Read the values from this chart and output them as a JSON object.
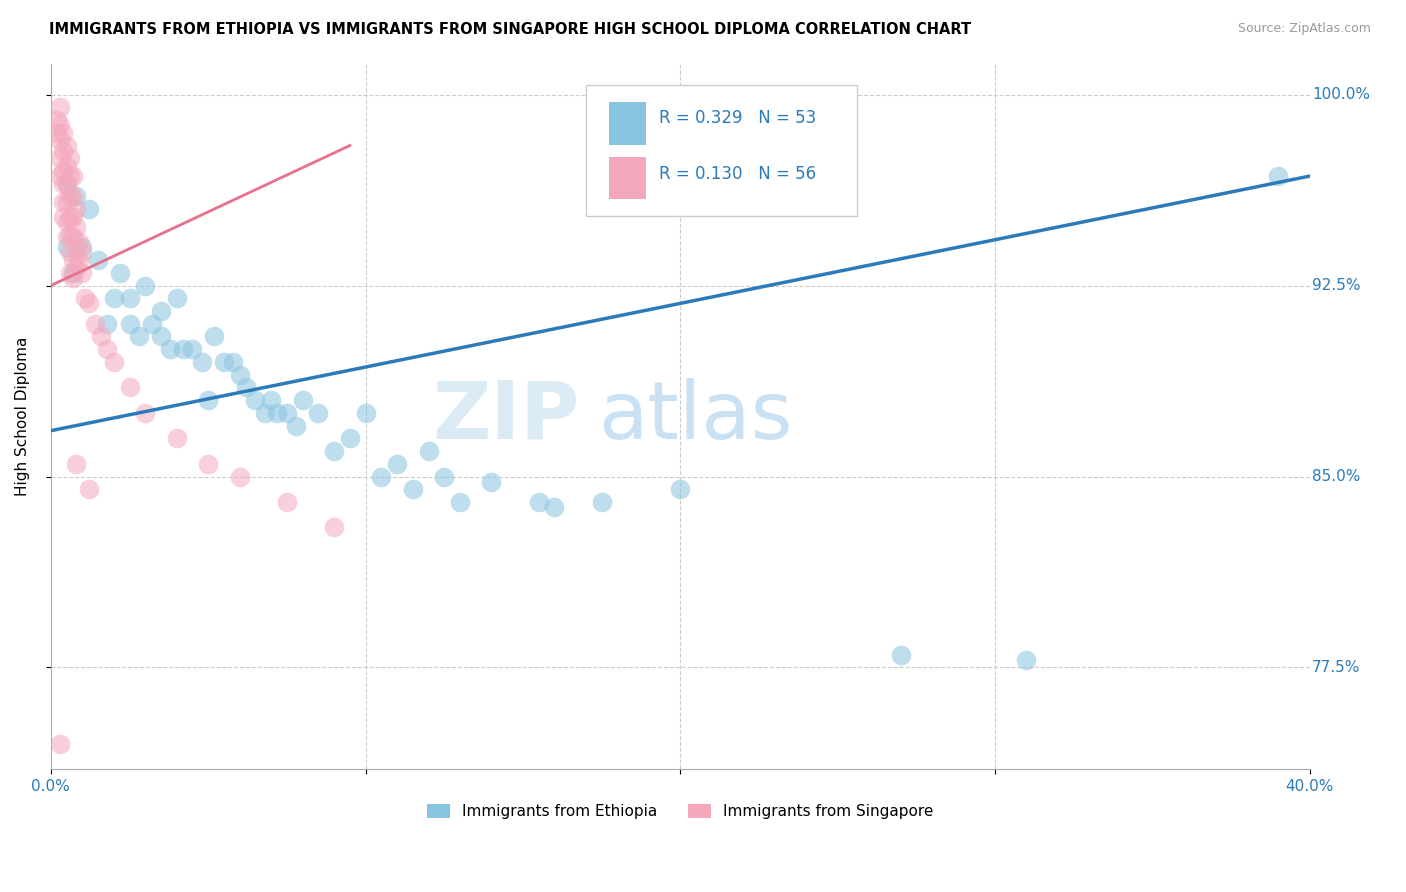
{
  "title": "IMMIGRANTS FROM ETHIOPIA VS IMMIGRANTS FROM SINGAPORE HIGH SCHOOL DIPLOMA CORRELATION CHART",
  "source": "Source: ZipAtlas.com",
  "ylabel": "High School Diploma",
  "x_min": 0.0,
  "x_max": 0.4,
  "y_min": 0.735,
  "y_max": 1.012,
  "x_ticks": [
    0.0,
    0.1,
    0.2,
    0.3,
    0.4
  ],
  "x_tick_labels": [
    "0.0%",
    "",
    "",
    "",
    "40.0%"
  ],
  "y_ticks": [
    0.775,
    0.85,
    0.925,
    1.0
  ],
  "y_tick_labels": [
    "77.5%",
    "85.0%",
    "92.5%",
    "100.0%"
  ],
  "blue_label": "Immigrants from Ethiopia",
  "pink_label": "Immigrants from Singapore",
  "blue_R": "R = 0.329",
  "blue_N": "N = 53",
  "pink_R": "R = 0.130",
  "pink_N": "N = 56",
  "blue_color": "#89c4e1",
  "pink_color": "#f4a8bc",
  "blue_line_color": "#2b7bba",
  "pink_line_color": "#e8708a",
  "watermark_zip": "ZIP",
  "watermark_atlas": "atlas",
  "blue_scatter_x": [
    0.005,
    0.005,
    0.007,
    0.008,
    0.01,
    0.012,
    0.015,
    0.018,
    0.02,
    0.022,
    0.025,
    0.025,
    0.028,
    0.03,
    0.032,
    0.035,
    0.035,
    0.038,
    0.04,
    0.042,
    0.045,
    0.048,
    0.05,
    0.052,
    0.055,
    0.058,
    0.06,
    0.062,
    0.065,
    0.068,
    0.07,
    0.072,
    0.075,
    0.078,
    0.08,
    0.085,
    0.09,
    0.095,
    0.1,
    0.105,
    0.11,
    0.115,
    0.12,
    0.125,
    0.13,
    0.14,
    0.155,
    0.16,
    0.175,
    0.2,
    0.27,
    0.31,
    0.39
  ],
  "blue_scatter_y": [
    0.965,
    0.94,
    0.93,
    0.96,
    0.94,
    0.955,
    0.935,
    0.91,
    0.92,
    0.93,
    0.92,
    0.91,
    0.905,
    0.925,
    0.91,
    0.915,
    0.905,
    0.9,
    0.92,
    0.9,
    0.9,
    0.895,
    0.88,
    0.905,
    0.895,
    0.895,
    0.89,
    0.885,
    0.88,
    0.875,
    0.88,
    0.875,
    0.875,
    0.87,
    0.88,
    0.875,
    0.86,
    0.865,
    0.875,
    0.85,
    0.855,
    0.845,
    0.86,
    0.85,
    0.84,
    0.848,
    0.84,
    0.838,
    0.84,
    0.845,
    0.78,
    0.778,
    0.968
  ],
  "pink_scatter_x": [
    0.002,
    0.002,
    0.003,
    0.003,
    0.003,
    0.003,
    0.003,
    0.004,
    0.004,
    0.004,
    0.004,
    0.004,
    0.004,
    0.005,
    0.005,
    0.005,
    0.005,
    0.005,
    0.005,
    0.006,
    0.006,
    0.006,
    0.006,
    0.006,
    0.006,
    0.006,
    0.007,
    0.007,
    0.007,
    0.007,
    0.007,
    0.007,
    0.008,
    0.008,
    0.008,
    0.008,
    0.009,
    0.009,
    0.01,
    0.01,
    0.011,
    0.012,
    0.014,
    0.016,
    0.018,
    0.02,
    0.025,
    0.03,
    0.04,
    0.05,
    0.06,
    0.075,
    0.09,
    0.003,
    0.008,
    0.012
  ],
  "pink_scatter_y": [
    0.99,
    0.985,
    0.995,
    0.988,
    0.982,
    0.975,
    0.968,
    0.985,
    0.978,
    0.97,
    0.965,
    0.958,
    0.952,
    0.98,
    0.972,
    0.965,
    0.958,
    0.95,
    0.944,
    0.975,
    0.968,
    0.96,
    0.952,
    0.945,
    0.938,
    0.93,
    0.968,
    0.96,
    0.952,
    0.944,
    0.935,
    0.928,
    0.955,
    0.948,
    0.94,
    0.932,
    0.942,
    0.935,
    0.938,
    0.93,
    0.92,
    0.918,
    0.91,
    0.905,
    0.9,
    0.895,
    0.885,
    0.875,
    0.865,
    0.855,
    0.85,
    0.84,
    0.83,
    0.745,
    0.855,
    0.845
  ],
  "blue_line_x": [
    0.0,
    0.4
  ],
  "blue_line_y": [
    0.868,
    0.968
  ],
  "pink_line_x": [
    0.0,
    0.095
  ],
  "pink_line_y": [
    0.925,
    0.98
  ]
}
